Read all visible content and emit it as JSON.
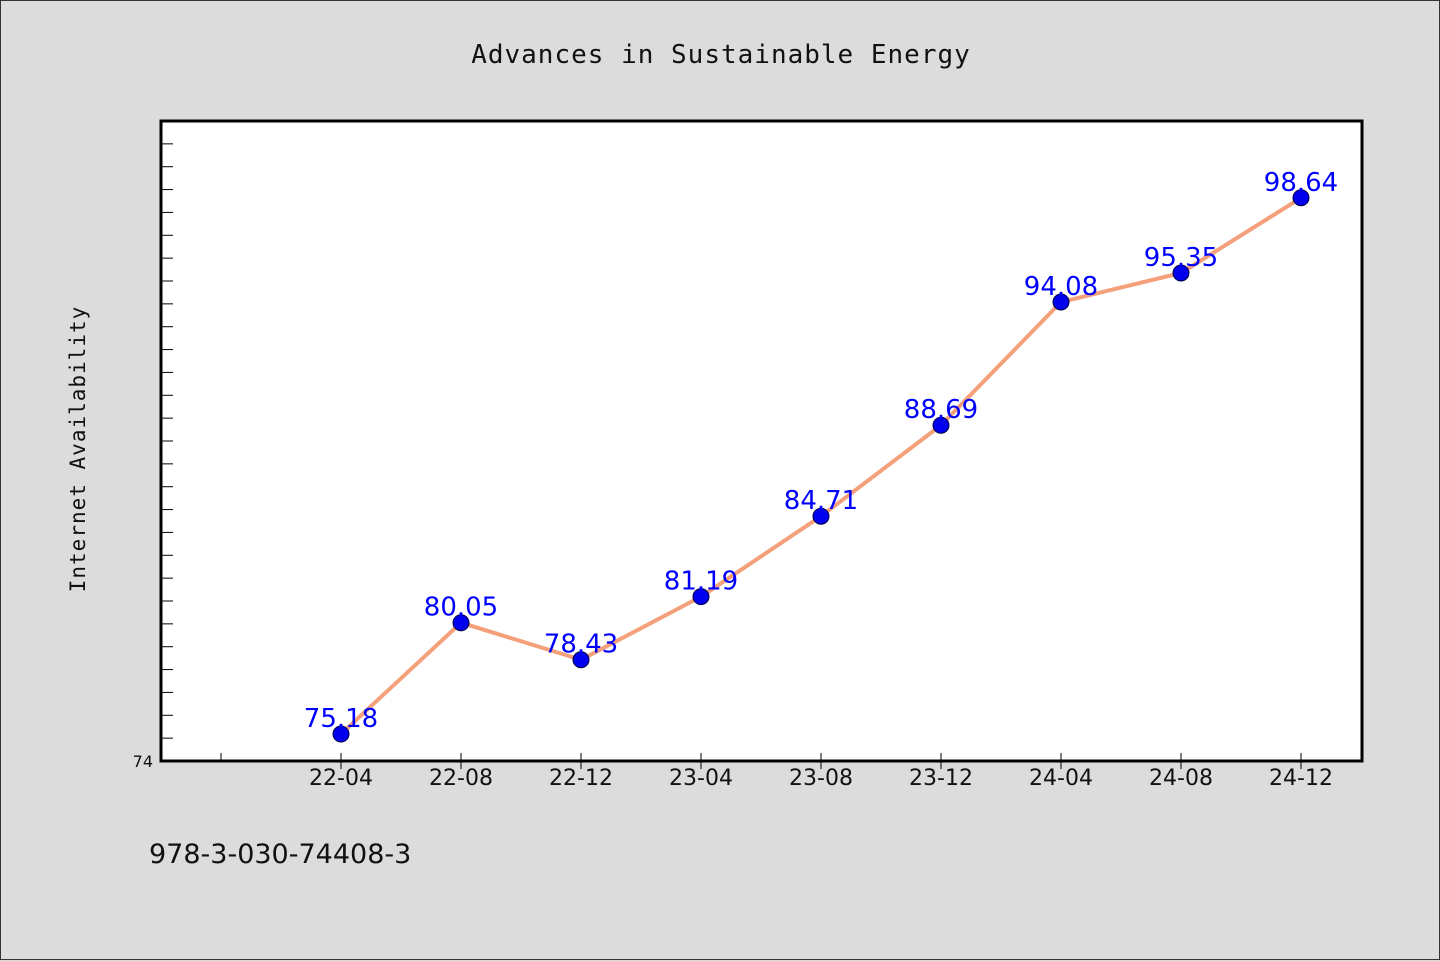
{
  "chart_data": {
    "type": "line",
    "title": "Advances in Sustainable Energy",
    "xlabel": "",
    "ylabel": "Internet Availability",
    "categories": [
      "22-04",
      "22-08",
      "22-12",
      "23-04",
      "23-08",
      "23-12",
      "24-04",
      "24-08",
      "24-12"
    ],
    "series": [
      {
        "values": [
          75.18,
          80.05,
          78.43,
          81.19,
          84.71,
          88.69,
          94.08,
          95.35,
          98.64
        ],
        "line_color": "#f4a07a",
        "marker_color": "#0000ee"
      }
    ],
    "data_labels": [
      "75.18",
      "80.05",
      "78.43",
      "81.19",
      "84.71",
      "88.69",
      "94.08",
      "95.35",
      "98.64"
    ],
    "y_tick_labels": [
      "74"
    ],
    "ylim": [
      74,
      102
    ],
    "y_minor_tick_step": 1,
    "grid": false,
    "legend": "none",
    "label_color": "#0000ff",
    "footnote": "978-3-030-74408-3"
  }
}
